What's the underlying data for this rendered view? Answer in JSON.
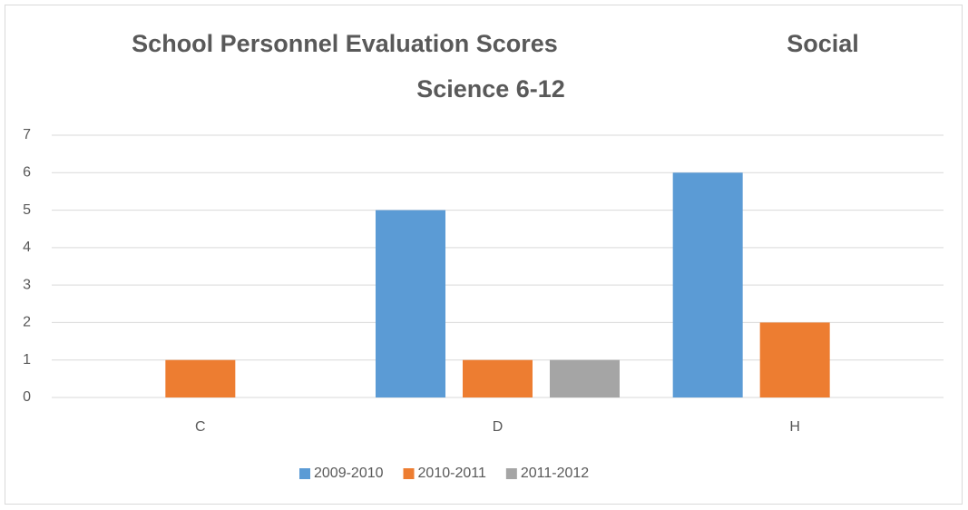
{
  "chart_data": {
    "type": "bar",
    "title": [
      "School Personnel Evaluation Scores",
      "Social",
      "Science 6-12"
    ],
    "categories": [
      "C",
      "D",
      "H"
    ],
    "series": [
      {
        "name": "2009-2010",
        "color": "#5b9bd5",
        "values": [
          0,
          5,
          6
        ]
      },
      {
        "name": "2010-2011",
        "color": "#ed7d31",
        "values": [
          1,
          1,
          2
        ]
      },
      {
        "name": "2011-2012",
        "color": "#a5a5a5",
        "values": [
          0,
          1,
          0
        ]
      }
    ],
    "ylim": [
      0,
      7
    ],
    "yticks": [
      0,
      1,
      2,
      3,
      4,
      5,
      6,
      7
    ],
    "grid": true,
    "legend": "bottom"
  }
}
